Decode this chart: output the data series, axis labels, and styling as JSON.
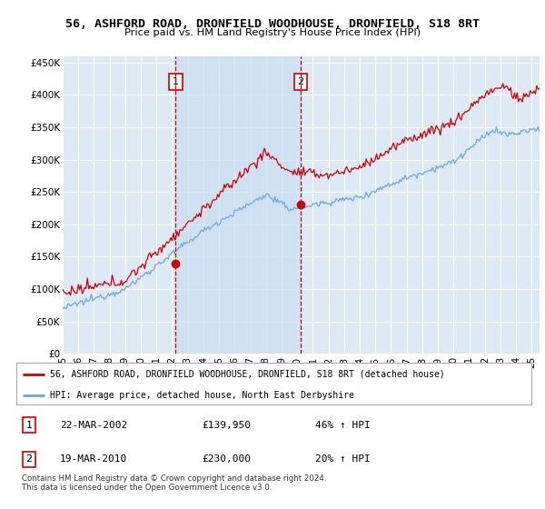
{
  "title": "56, ASHFORD ROAD, DRONFIELD WOODHOUSE, DRONFIELD, S18 8RT",
  "subtitle": "Price paid vs. HM Land Registry's House Price Index (HPI)",
  "ylabel_ticks": [
    "£0",
    "£50K",
    "£100K",
    "£150K",
    "£200K",
    "£250K",
    "£300K",
    "£350K",
    "£400K",
    "£450K"
  ],
  "ytick_vals": [
    0,
    50000,
    100000,
    150000,
    200000,
    250000,
    300000,
    350000,
    400000,
    450000
  ],
  "ylim": [
    0,
    460000
  ],
  "xlim_start": 1995.0,
  "xlim_end": 2025.5,
  "background_color": "#ffffff",
  "plot_bg_color": "#ddeaf5",
  "shade_color": "#c8ddf0",
  "grid_color": "#ffffff",
  "sale1_x": 2002.22,
  "sale1_y": 139950,
  "sale2_x": 2010.22,
  "sale2_y": 230000,
  "legend_line1": "56, ASHFORD ROAD, DRONFIELD WOODHOUSE, DRONFIELD, S18 8RT (detached house)",
  "legend_line2": "HPI: Average price, detached house, North East Derbyshire",
  "ann1_date": "22-MAR-2002",
  "ann1_price": "£139,950",
  "ann1_hpi": "46% ↑ HPI",
  "ann2_date": "19-MAR-2010",
  "ann2_price": "£230,000",
  "ann2_hpi": "20% ↑ HPI",
  "footer": "Contains HM Land Registry data © Crown copyright and database right 2024.\nThis data is licensed under the Open Government Licence v3.0.",
  "red_color": "#cc0000",
  "blue_color": "#6aaad4",
  "sale_dot_color": "#cc0000",
  "box_color": "#cc0000"
}
